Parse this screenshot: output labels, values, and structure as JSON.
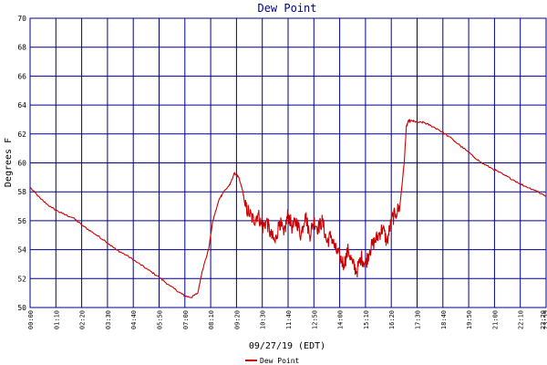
{
  "chart_data": {
    "type": "line",
    "title": "Dew Point",
    "xlabel": "09/27/19 (EDT)",
    "ylabel": "Degrees F",
    "ylim": [
      50,
      70
    ],
    "yticks": [
      50,
      52,
      54,
      56,
      58,
      60,
      62,
      64,
      66,
      68,
      70
    ],
    "xlim": [
      0,
      24
    ],
    "xtick_labels": [
      "00:00",
      "01:10",
      "02:20",
      "03:30",
      "04:40",
      "05:50",
      "07:00",
      "08:10",
      "09:20",
      "10:30",
      "11:40",
      "12:50",
      "14:00",
      "15:10",
      "16:20",
      "17:30",
      "18:40",
      "19:50",
      "21:00",
      "22:10",
      "23:20",
      "23:59"
    ],
    "grid": true,
    "legend": "bottom-center",
    "colors": {
      "series": "#cc0000",
      "grid": "#00008b",
      "title": "#00008b"
    },
    "series": [
      {
        "name": "Dew Point",
        "x": [
          0.0,
          0.5,
          1.0,
          1.5,
          2.0,
          2.5,
          3.0,
          3.5,
          4.0,
          4.5,
          5.0,
          5.5,
          6.0,
          6.5,
          7.0,
          7.2,
          7.5,
          7.8,
          8.0,
          8.3,
          8.5,
          8.8,
          9.0,
          9.3,
          9.5,
          9.7,
          9.9,
          10.0,
          10.2,
          10.4,
          10.6,
          10.8,
          11.0,
          11.2,
          11.4,
          11.6,
          11.8,
          12.0,
          12.2,
          12.4,
          12.6,
          12.8,
          13.0,
          13.2,
          13.4,
          13.6,
          13.8,
          14.0,
          14.2,
          14.4,
          14.6,
          14.8,
          15.0,
          15.2,
          15.4,
          15.6,
          15.8,
          16.0,
          16.2,
          16.4,
          16.6,
          16.8,
          17.0,
          17.2,
          17.4,
          17.5,
          17.6,
          17.8,
          18.0,
          18.3,
          18.6,
          19.0,
          19.5,
          20.0,
          20.5,
          21.0,
          21.5,
          22.0,
          22.5,
          23.0,
          23.5,
          23.99
        ],
        "values": [
          58.3,
          57.5,
          56.9,
          56.5,
          56.2,
          55.6,
          55.1,
          54.6,
          54.0,
          53.6,
          53.1,
          52.6,
          52.1,
          51.5,
          51.0,
          50.8,
          50.7,
          51.0,
          52.5,
          54.0,
          56.0,
          57.5,
          58.0,
          58.5,
          59.3,
          59.0,
          58.0,
          57.0,
          56.5,
          56.0,
          56.5,
          55.5,
          56.0,
          55.0,
          54.5,
          56.0,
          55.0,
          56.5,
          55.5,
          56.0,
          55.0,
          56.5,
          55.0,
          56.0,
          55.5,
          56.0,
          54.5,
          55.0,
          54.0,
          53.5,
          53.0,
          54.0,
          53.0,
          52.5,
          53.5,
          53.0,
          54.0,
          54.5,
          55.0,
          55.5,
          54.5,
          56.0,
          56.5,
          57.0,
          60.0,
          62.5,
          62.9,
          62.9,
          62.8,
          62.8,
          62.6,
          62.3,
          61.8,
          61.2,
          60.6,
          60.0,
          59.6,
          59.2,
          58.8,
          58.4,
          58.1,
          57.7
        ]
      }
    ]
  }
}
